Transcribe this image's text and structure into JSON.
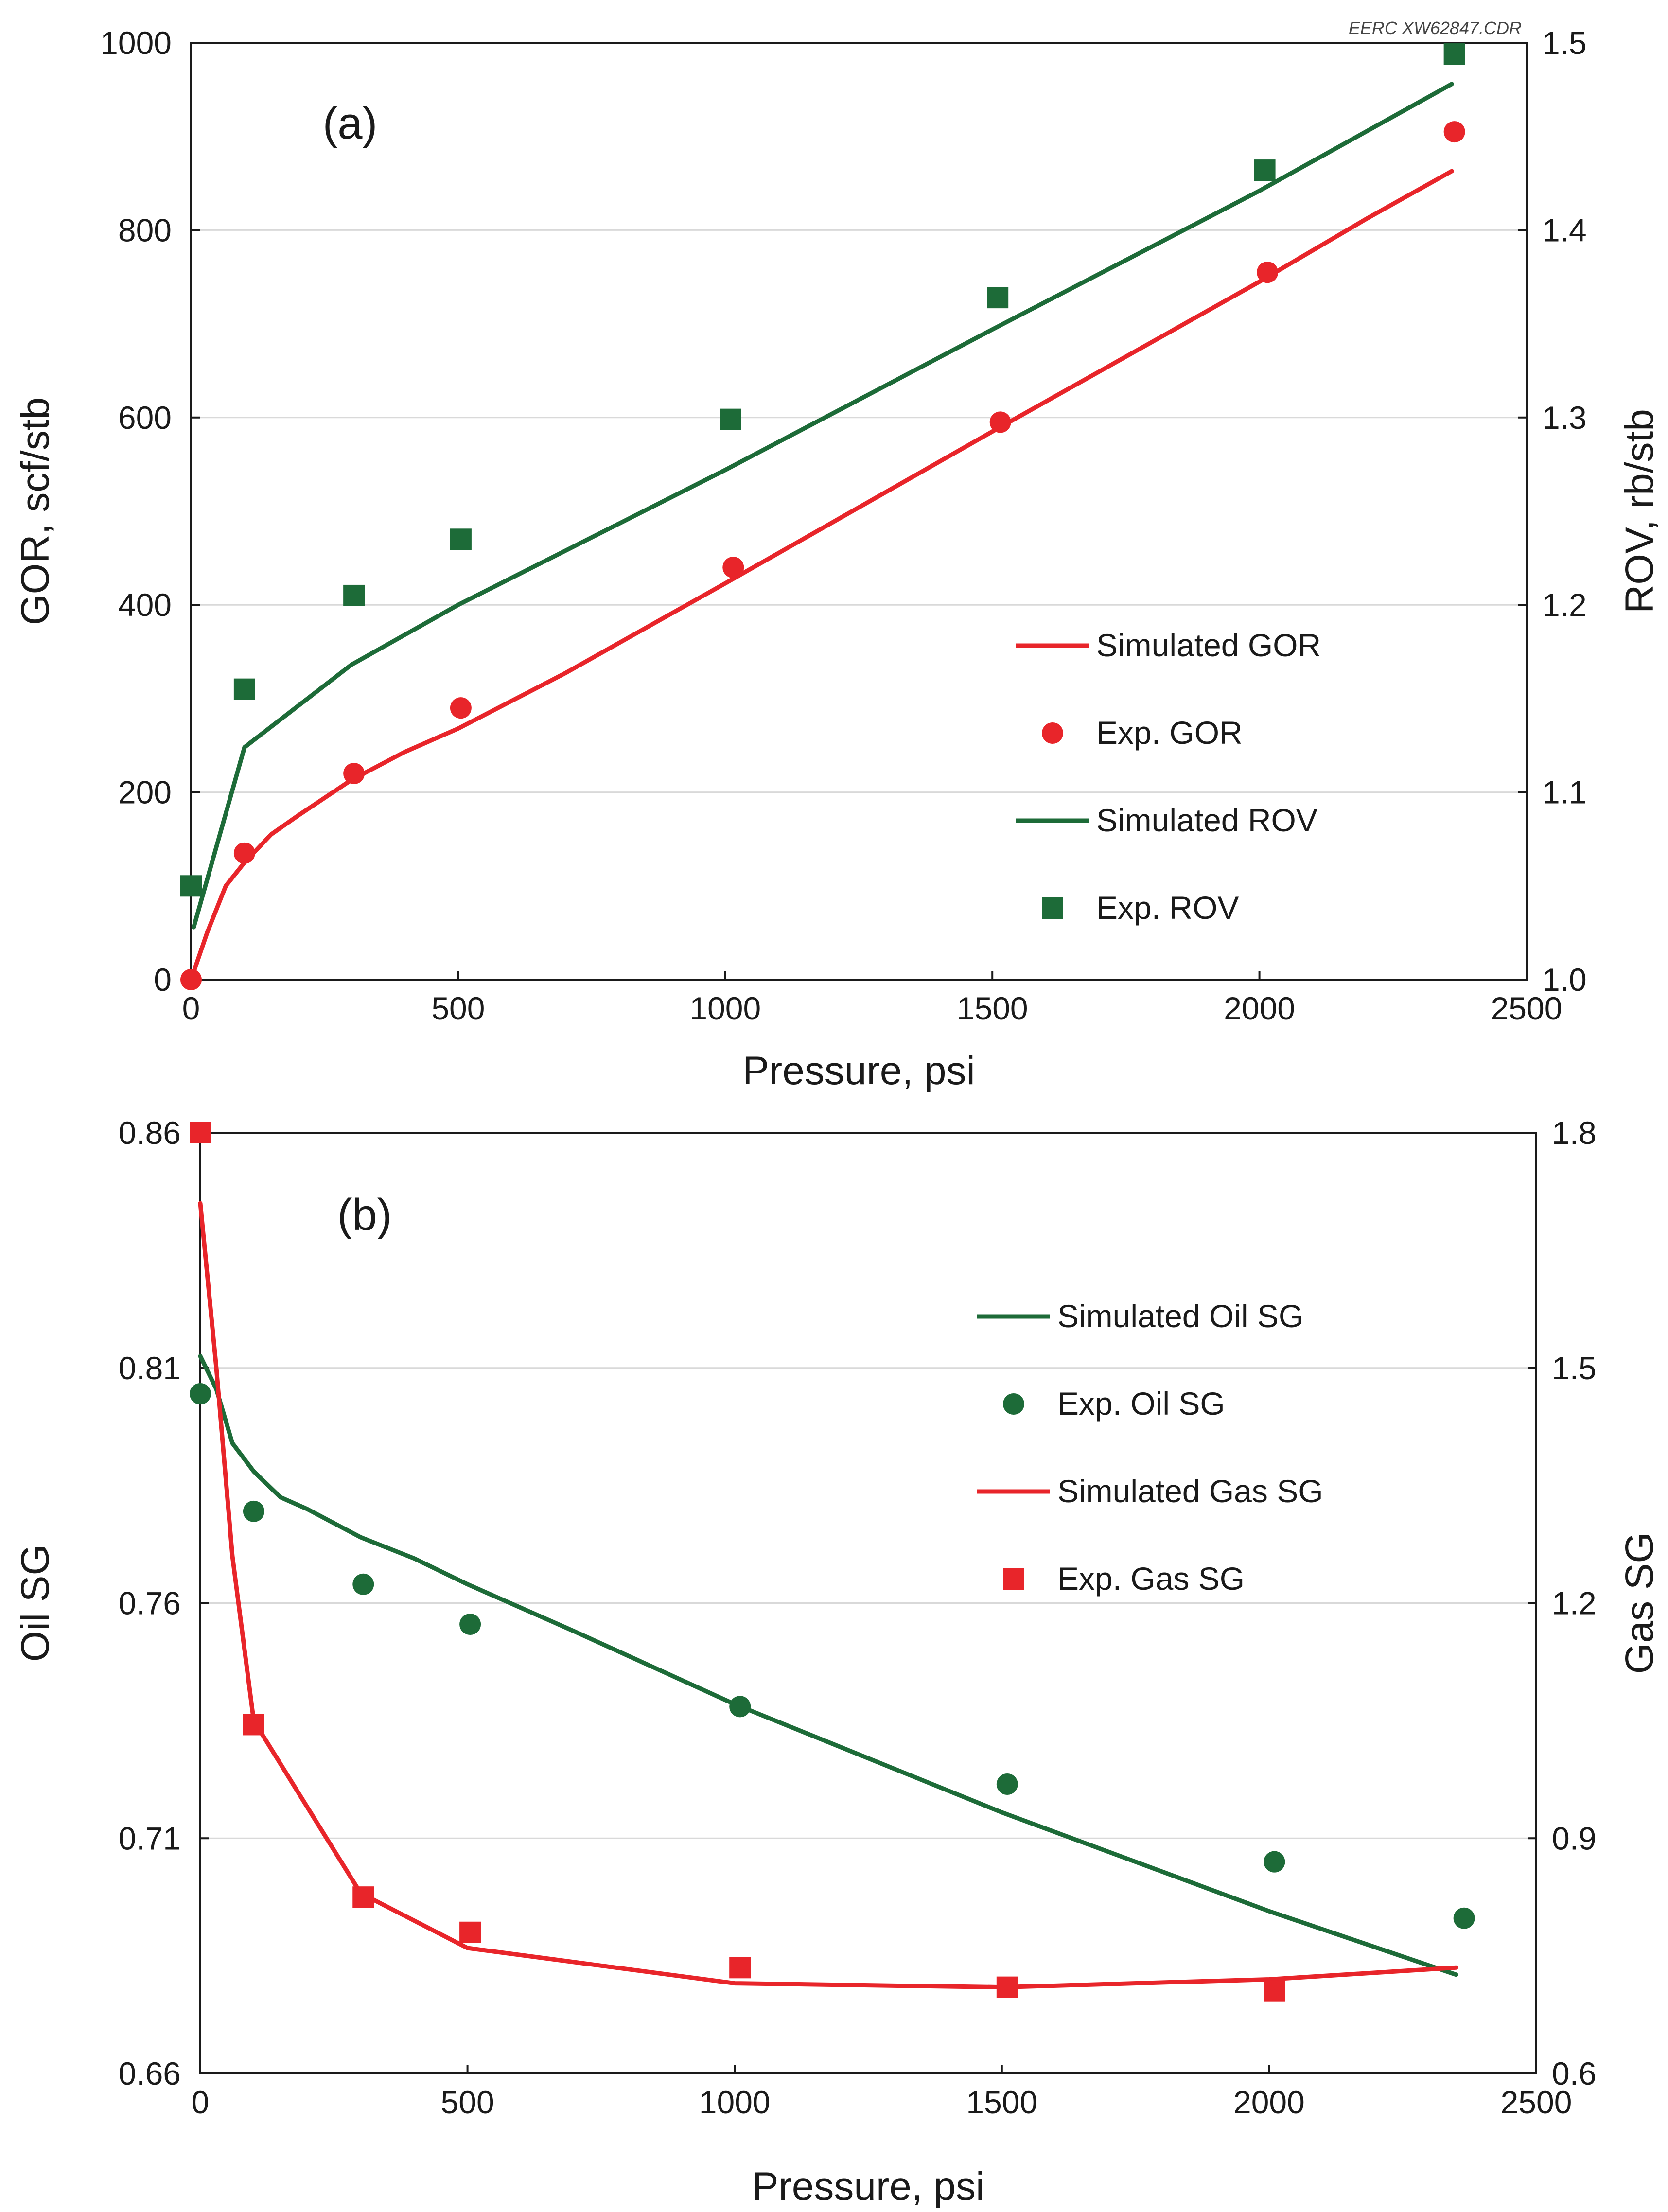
{
  "credit": "EERC XW62847.CDR",
  "colors": {
    "red": "#e8252a",
    "green": "#1d6b38"
  },
  "chart_data": [
    {
      "type": "line",
      "panel_label": "(a)",
      "xlabel": "Pressure, psi",
      "ylabel": "GOR, scf/stb",
      "y2label": "ROV, rb/stb",
      "xlim": [
        0,
        2500
      ],
      "ylim": [
        0,
        1000
      ],
      "y2lim": [
        1.0,
        1.5
      ],
      "x_ticks": [
        0,
        500,
        1000,
        1500,
        2000,
        2500
      ],
      "x_tick_labels": [
        "0",
        "500",
        "1000",
        "1500",
        "2000",
        "2500"
      ],
      "y_ticks": [
        0,
        200,
        400,
        600,
        800,
        1000
      ],
      "y_tick_labels": [
        "0",
        "200",
        "400",
        "600",
        "800",
        "1000"
      ],
      "y2_ticks": [
        1.0,
        1.1,
        1.2,
        1.3,
        1.4,
        1.5
      ],
      "y2_tick_labels": [
        "1.0",
        "1.1",
        "1.2",
        "1.3",
        "1.4",
        "1.5"
      ],
      "grid": true,
      "legend_position": "lower-right",
      "series": [
        {
          "name": "Simulated GOR",
          "kind": "line",
          "axis": "left",
          "color": "#e8252a",
          "x": [
            0,
            30,
            65,
            100,
            150,
            200,
            300,
            400,
            500,
            700,
            1000,
            1500,
            2000,
            2200,
            2360
          ],
          "y": [
            0,
            50,
            100,
            125,
            155,
            175,
            213,
            243,
            268,
            327,
            423,
            585,
            745,
            812,
            863
          ]
        },
        {
          "name": "Exp. GOR",
          "kind": "marker",
          "marker": "circle",
          "axis": "left",
          "color": "#e8252a",
          "x": [
            0,
            100,
            305,
            505,
            1015,
            1515,
            2015,
            2365
          ],
          "y": [
            0,
            135,
            220,
            290,
            440,
            595,
            755,
            905
          ]
        },
        {
          "name": "Simulated ROV",
          "kind": "line",
          "axis": "right",
          "color": "#1d6b38",
          "x": [
            5,
            100,
            200,
            300,
            500,
            1000,
            1500,
            2000,
            2360
          ],
          "y": [
            1.028,
            1.124,
            1.146,
            1.168,
            1.2,
            1.272,
            1.347,
            1.421,
            1.478
          ]
        },
        {
          "name": "Exp. ROV",
          "kind": "marker",
          "marker": "square",
          "axis": "right",
          "color": "#1d6b38",
          "x": [
            0,
            100,
            305,
            505,
            1010,
            1510,
            2010,
            2365
          ],
          "y": [
            1.05,
            1.155,
            1.205,
            1.235,
            1.299,
            1.364,
            1.432,
            1.494
          ]
        }
      ]
    },
    {
      "type": "line",
      "panel_label": "(b)",
      "xlabel": "Pressure, psi",
      "ylabel": "Oil SG",
      "y2label": "Gas SG",
      "xlim": [
        0,
        2500
      ],
      "ylim": [
        0.66,
        0.86
      ],
      "y2lim": [
        0.6,
        1.8
      ],
      "x_ticks": [
        0,
        500,
        1000,
        1500,
        2000,
        2500
      ],
      "x_tick_labels": [
        "0",
        "500",
        "1000",
        "1500",
        "2000",
        "2500"
      ],
      "y_ticks": [
        0.66,
        0.71,
        0.76,
        0.81,
        0.86
      ],
      "y_tick_labels": [
        "0.66",
        "0.71",
        "0.76",
        "0.81",
        "0.86"
      ],
      "y2_ticks": [
        0.6,
        0.9,
        1.2,
        1.5,
        1.8
      ],
      "y2_tick_labels": [
        "0.6",
        "0.9",
        "1.2",
        "1.5",
        "1.8"
      ],
      "grid": true,
      "legend_position": "upper-right",
      "series": [
        {
          "name": "Simulated Oil SG",
          "kind": "line",
          "axis": "left",
          "color": "#1d6b38",
          "x": [
            0,
            30,
            60,
            100,
            150,
            200,
            300,
            400,
            500,
            700,
            1000,
            1500,
            2000,
            2350
          ],
          "y": [
            0.8125,
            0.8055,
            0.794,
            0.788,
            0.7825,
            0.78,
            0.774,
            0.7695,
            0.764,
            0.754,
            0.7385,
            0.7155,
            0.6945,
            0.681
          ]
        },
        {
          "name": "Exp. Oil SG",
          "kind": "marker",
          "marker": "circle",
          "axis": "left",
          "color": "#1d6b38",
          "x": [
            0,
            100,
            305,
            505,
            1010,
            1510,
            2010,
            2365
          ],
          "y": [
            0.8045,
            0.7795,
            0.764,
            0.7555,
            0.738,
            0.7215,
            0.705,
            0.693
          ]
        },
        {
          "name": "Simulated Gas SG",
          "kind": "line",
          "axis": "right",
          "color": "#e8252a",
          "x": [
            0,
            30,
            60,
            100,
            200,
            300,
            500,
            1000,
            1500,
            2000,
            2350
          ],
          "y": [
            1.71,
            1.5,
            1.26,
            1.05,
            0.94,
            0.83,
            0.76,
            0.715,
            0.71,
            0.72,
            0.735
          ]
        },
        {
          "name": "Exp. Gas SG",
          "kind": "marker",
          "marker": "square",
          "axis": "right",
          "color": "#e8252a",
          "x": [
            0,
            100,
            305,
            505,
            1010,
            1510,
            2010
          ],
          "y": [
            1.8,
            1.045,
            0.825,
            0.78,
            0.735,
            0.71,
            0.705
          ]
        }
      ]
    }
  ]
}
